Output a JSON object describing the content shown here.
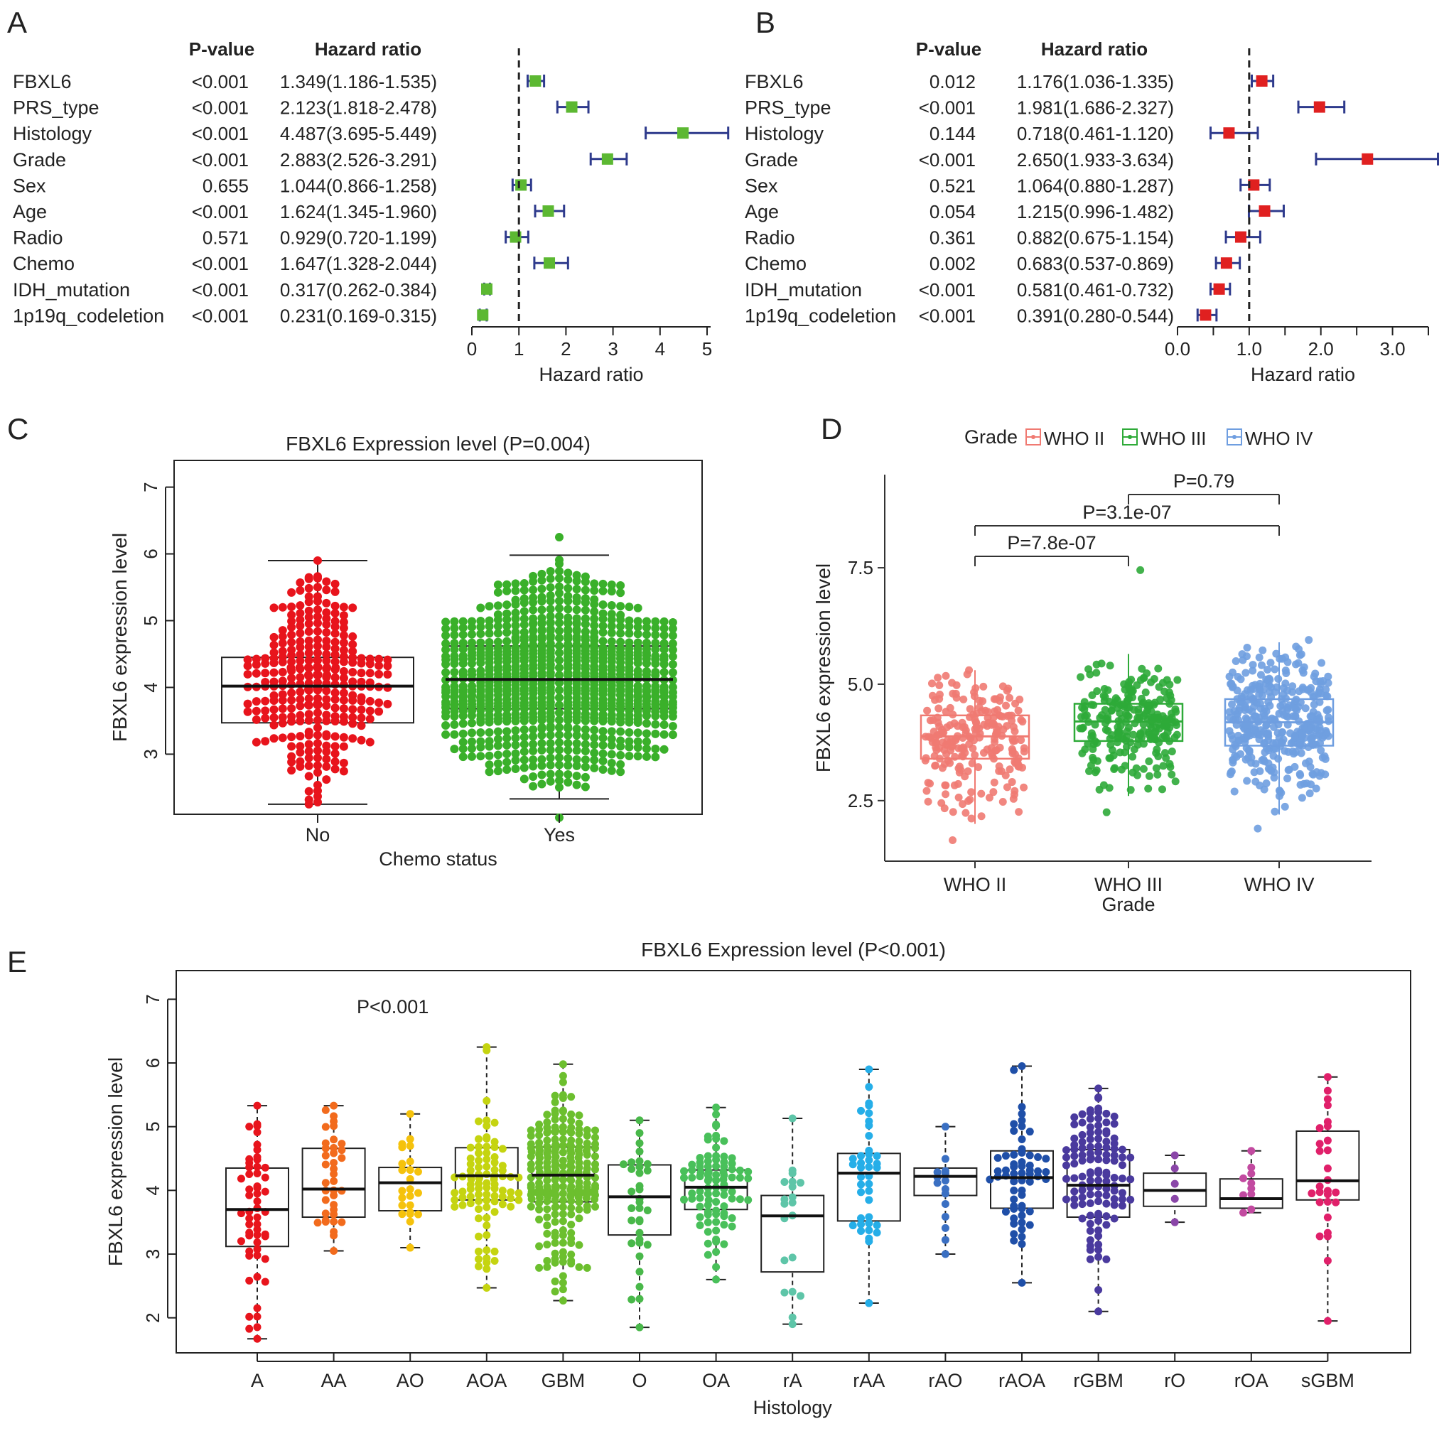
{
  "panels": {
    "a": {
      "label": "A"
    },
    "b": {
      "label": "B"
    },
    "c": {
      "label": "C"
    },
    "d": {
      "label": "D"
    },
    "e": {
      "label": "E"
    }
  },
  "chart_data": [
    {
      "id": "A",
      "type": "forest",
      "col_headers": {
        "p": "P-value",
        "hr": "Hazard ratio"
      },
      "xlabel": "Hazard ratio",
      "xlim": [
        0,
        5
      ],
      "ticks": [
        "0",
        "1",
        "2",
        "3",
        "4",
        "5"
      ],
      "tick_values": [
        0,
        1,
        2,
        3,
        4,
        5
      ],
      "marker_color": "#5cb832",
      "ci_color": "#2e3a8c",
      "rows": [
        {
          "name": "FBXL6",
          "p": "<0.001",
          "hr_text": "1.349(1.186-1.535)",
          "hr": 1.349,
          "lo": 1.186,
          "hi": 1.535
        },
        {
          "name": "PRS_type",
          "p": "<0.001",
          "hr_text": "2.123(1.818-2.478)",
          "hr": 2.123,
          "lo": 1.818,
          "hi": 2.478
        },
        {
          "name": "Histology",
          "p": "<0.001",
          "hr_text": "4.487(3.695-5.449)",
          "hr": 4.487,
          "lo": 3.695,
          "hi": 5.449
        },
        {
          "name": "Grade",
          "p": "<0.001",
          "hr_text": "2.883(2.526-3.291)",
          "hr": 2.883,
          "lo": 2.526,
          "hi": 3.291
        },
        {
          "name": "Sex",
          "p": "0.655",
          "hr_text": "1.044(0.866-1.258)",
          "hr": 1.044,
          "lo": 0.866,
          "hi": 1.258
        },
        {
          "name": "Age",
          "p": "<0.001",
          "hr_text": "1.624(1.345-1.960)",
          "hr": 1.624,
          "lo": 1.345,
          "hi": 1.96
        },
        {
          "name": "Radio",
          "p": "0.571",
          "hr_text": "0.929(0.720-1.199)",
          "hr": 0.929,
          "lo": 0.72,
          "hi": 1.199
        },
        {
          "name": "Chemo",
          "p": "<0.001",
          "hr_text": "1.647(1.328-2.044)",
          "hr": 1.647,
          "lo": 1.328,
          "hi": 2.044
        },
        {
          "name": "IDH_mutation",
          "p": "<0.001",
          "hr_text": "0.317(0.262-0.384)",
          "hr": 0.317,
          "lo": 0.262,
          "hi": 0.384
        },
        {
          "name": "1p19q_codeletion",
          "p": "<0.001",
          "hr_text": "0.231(0.169-0.315)",
          "hr": 0.231,
          "lo": 0.169,
          "hi": 0.315
        }
      ]
    },
    {
      "id": "B",
      "type": "forest",
      "col_headers": {
        "p": "P-value",
        "hr": "Hazard ratio"
      },
      "xlabel": "Hazard ratio",
      "xlim": [
        0,
        3.5
      ],
      "ticks": [
        "0.0",
        "1.0",
        "2.0",
        "3.0"
      ],
      "tick_values": [
        0,
        1,
        2,
        3
      ],
      "marker_color": "#e02020",
      "ci_color": "#2e3a8c",
      "rows": [
        {
          "name": "FBXL6",
          "p": "0.012",
          "hr_text": "1.176(1.036-1.335)",
          "hr": 1.176,
          "lo": 1.036,
          "hi": 1.335
        },
        {
          "name": "PRS_type",
          "p": "<0.001",
          "hr_text": "1.981(1.686-2.327)",
          "hr": 1.981,
          "lo": 1.686,
          "hi": 2.327
        },
        {
          "name": "Histology",
          "p": "0.144",
          "hr_text": "0.718(0.461-1.120)",
          "hr": 0.718,
          "lo": 0.461,
          "hi": 1.12
        },
        {
          "name": "Grade",
          "p": "<0.001",
          "hr_text": "2.650(1.933-3.634)",
          "hr": 2.65,
          "lo": 1.933,
          "hi": 3.634
        },
        {
          "name": "Sex",
          "p": "0.521",
          "hr_text": "1.064(0.880-1.287)",
          "hr": 1.064,
          "lo": 0.88,
          "hi": 1.287
        },
        {
          "name": "Age",
          "p": "0.054",
          "hr_text": "1.215(0.996-1.482)",
          "hr": 1.215,
          "lo": 0.996,
          "hi": 1.482
        },
        {
          "name": "Radio",
          "p": "0.361",
          "hr_text": "0.882(0.675-1.154)",
          "hr": 0.882,
          "lo": 0.675,
          "hi": 1.154
        },
        {
          "name": "Chemo",
          "p": "0.002",
          "hr_text": "0.683(0.537-0.869)",
          "hr": 0.683,
          "lo": 0.537,
          "hi": 0.869
        },
        {
          "name": "IDH_mutation",
          "p": "<0.001",
          "hr_text": "0.581(0.461-0.732)",
          "hr": 0.581,
          "lo": 0.461,
          "hi": 0.732
        },
        {
          "name": "1p19q_codeletion",
          "p": "<0.001",
          "hr_text": "0.391(0.280-0.544)",
          "hr": 0.391,
          "lo": 0.28,
          "hi": 0.544
        }
      ]
    },
    {
      "id": "C",
      "type": "box",
      "title": "FBXL6 Expression level (P=0.004)",
      "xlabel": "Chemo status",
      "ylabel": "FBXL6 expression level",
      "ylim": [
        2.1,
        7.4
      ],
      "yticks": [
        3,
        4,
        5,
        6,
        7
      ],
      "groups": [
        {
          "name": "No",
          "color": "#e8141c",
          "n": 300,
          "min": 2.25,
          "q1": 3.47,
          "median": 4.02,
          "q3": 4.45,
          "max": 5.9,
          "whisker_lo": 2.25,
          "whisker_hi": 5.9
        },
        {
          "name": "Yes",
          "color": "#3ab02a",
          "n": 900,
          "min": 2.05,
          "q1": 3.68,
          "median": 4.12,
          "q3": 4.62,
          "max": 6.25,
          "whisker_lo": 2.33,
          "whisker_hi": 5.98
        }
      ]
    },
    {
      "id": "D",
      "type": "box",
      "xlabel": "Grade",
      "ylabel": "FBXL6 expression level",
      "ylim": [
        1.2,
        9.5
      ],
      "yticks": [
        2.5,
        5.0,
        7.5
      ],
      "ytick_labels": [
        "2.5",
        "5.0",
        "7.5"
      ],
      "legend": {
        "title": "Grade",
        "items": [
          "WHO II",
          "WHO III",
          "WHO IV"
        ]
      },
      "comparisons": [
        {
          "label": "P=7.8e-07",
          "from": 0,
          "to": 1,
          "level": 0
        },
        {
          "label": "P=3.1e-07",
          "from": 0,
          "to": 2,
          "level": 1
        },
        {
          "label": "P=0.79",
          "from": 1,
          "to": 2,
          "level": 2
        }
      ],
      "groups": [
        {
          "name": "WHO II",
          "color": "#f07a72",
          "n": 230,
          "min": 1.65,
          "q1": 3.4,
          "median": 3.88,
          "q3": 4.33,
          "max": 5.3,
          "whisker_lo": 2.0,
          "whisker_hi": 5.3
        },
        {
          "name": "WHO III",
          "color": "#2eaa38",
          "n": 250,
          "min": 2.25,
          "q1": 3.78,
          "median": 4.2,
          "q3": 4.58,
          "max": 7.45,
          "whisker_lo": 2.6,
          "whisker_hi": 5.65
        },
        {
          "name": "WHO IV",
          "color": "#6f9ee0",
          "n": 380,
          "min": 1.9,
          "q1": 3.68,
          "median": 4.18,
          "q3": 4.68,
          "max": 5.95,
          "whisker_lo": 2.2,
          "whisker_hi": 5.9
        }
      ]
    },
    {
      "id": "E",
      "type": "box",
      "title": "FBXL6 Expression level (P<0.001)",
      "annotation": "P<0.001",
      "xlabel": "Histology",
      "ylabel": "FBXL6 expression level",
      "ylim": [
        1.45,
        7.45
      ],
      "yticks": [
        2,
        3,
        4,
        5,
        6,
        7
      ],
      "groups": [
        {
          "name": "A",
          "color": "#e8141c",
          "n": 55,
          "min": 1.67,
          "q1": 3.12,
          "median": 3.7,
          "q3": 4.35,
          "max": 5.33
        },
        {
          "name": "AA",
          "color": "#f26b1d",
          "n": 38,
          "min": 3.05,
          "q1": 3.58,
          "median": 4.02,
          "q3": 4.66,
          "max": 5.33
        },
        {
          "name": "AO",
          "color": "#f5c20c",
          "n": 24,
          "min": 3.1,
          "q1": 3.68,
          "median": 4.12,
          "q3": 4.36,
          "max": 5.2
        },
        {
          "name": "AOA",
          "color": "#c5d410",
          "n": 90,
          "min": 2.47,
          "q1": 3.85,
          "median": 4.23,
          "q3": 4.67,
          "max": 6.25
        },
        {
          "name": "GBM",
          "color": "#6cbf2e",
          "n": 230,
          "min": 2.27,
          "q1": 3.82,
          "median": 4.24,
          "q3": 4.68,
          "max": 5.98
        },
        {
          "name": "O",
          "color": "#49b84a",
          "n": 34,
          "min": 1.85,
          "q1": 3.3,
          "median": 3.9,
          "q3": 4.4,
          "max": 5.1
        },
        {
          "name": "OA",
          "color": "#49c05a",
          "n": 90,
          "min": 2.6,
          "q1": 3.7,
          "median": 4.05,
          "q3": 4.32,
          "max": 5.3
        },
        {
          "name": "rA",
          "color": "#5ec5a8",
          "n": 20,
          "min": 1.9,
          "q1": 2.72,
          "median": 3.6,
          "q3": 3.92,
          "max": 5.13
        },
        {
          "name": "rAA",
          "color": "#25aee8",
          "n": 40,
          "min": 2.23,
          "q1": 3.52,
          "median": 4.27,
          "q3": 4.58,
          "max": 5.9
        },
        {
          "name": "rAO",
          "color": "#3a6fc2",
          "n": 15,
          "min": 3.0,
          "q1": 3.92,
          "median": 4.22,
          "q3": 4.35,
          "max": 5.0
        },
        {
          "name": "rAOA",
          "color": "#1f4fa8",
          "n": 60,
          "min": 2.55,
          "q1": 3.72,
          "median": 4.2,
          "q3": 4.62,
          "max": 5.95
        },
        {
          "name": "rGBM",
          "color": "#4a3a9e",
          "n": 120,
          "min": 2.1,
          "q1": 3.58,
          "median": 4.08,
          "q3": 4.64,
          "max": 5.6
        },
        {
          "name": "rO",
          "color": "#8a46a8",
          "n": 5,
          "min": 3.5,
          "q1": 3.75,
          "median": 4.0,
          "q3": 4.27,
          "max": 4.55
        },
        {
          "name": "rOA",
          "color": "#c24aa0",
          "n": 10,
          "min": 3.65,
          "q1": 3.72,
          "median": 3.87,
          "q3": 4.18,
          "max": 4.62
        },
        {
          "name": "sGBM",
          "color": "#e0206a",
          "n": 28,
          "min": 1.95,
          "q1": 3.85,
          "median": 4.15,
          "q3": 4.93,
          "max": 5.78
        }
      ]
    }
  ]
}
